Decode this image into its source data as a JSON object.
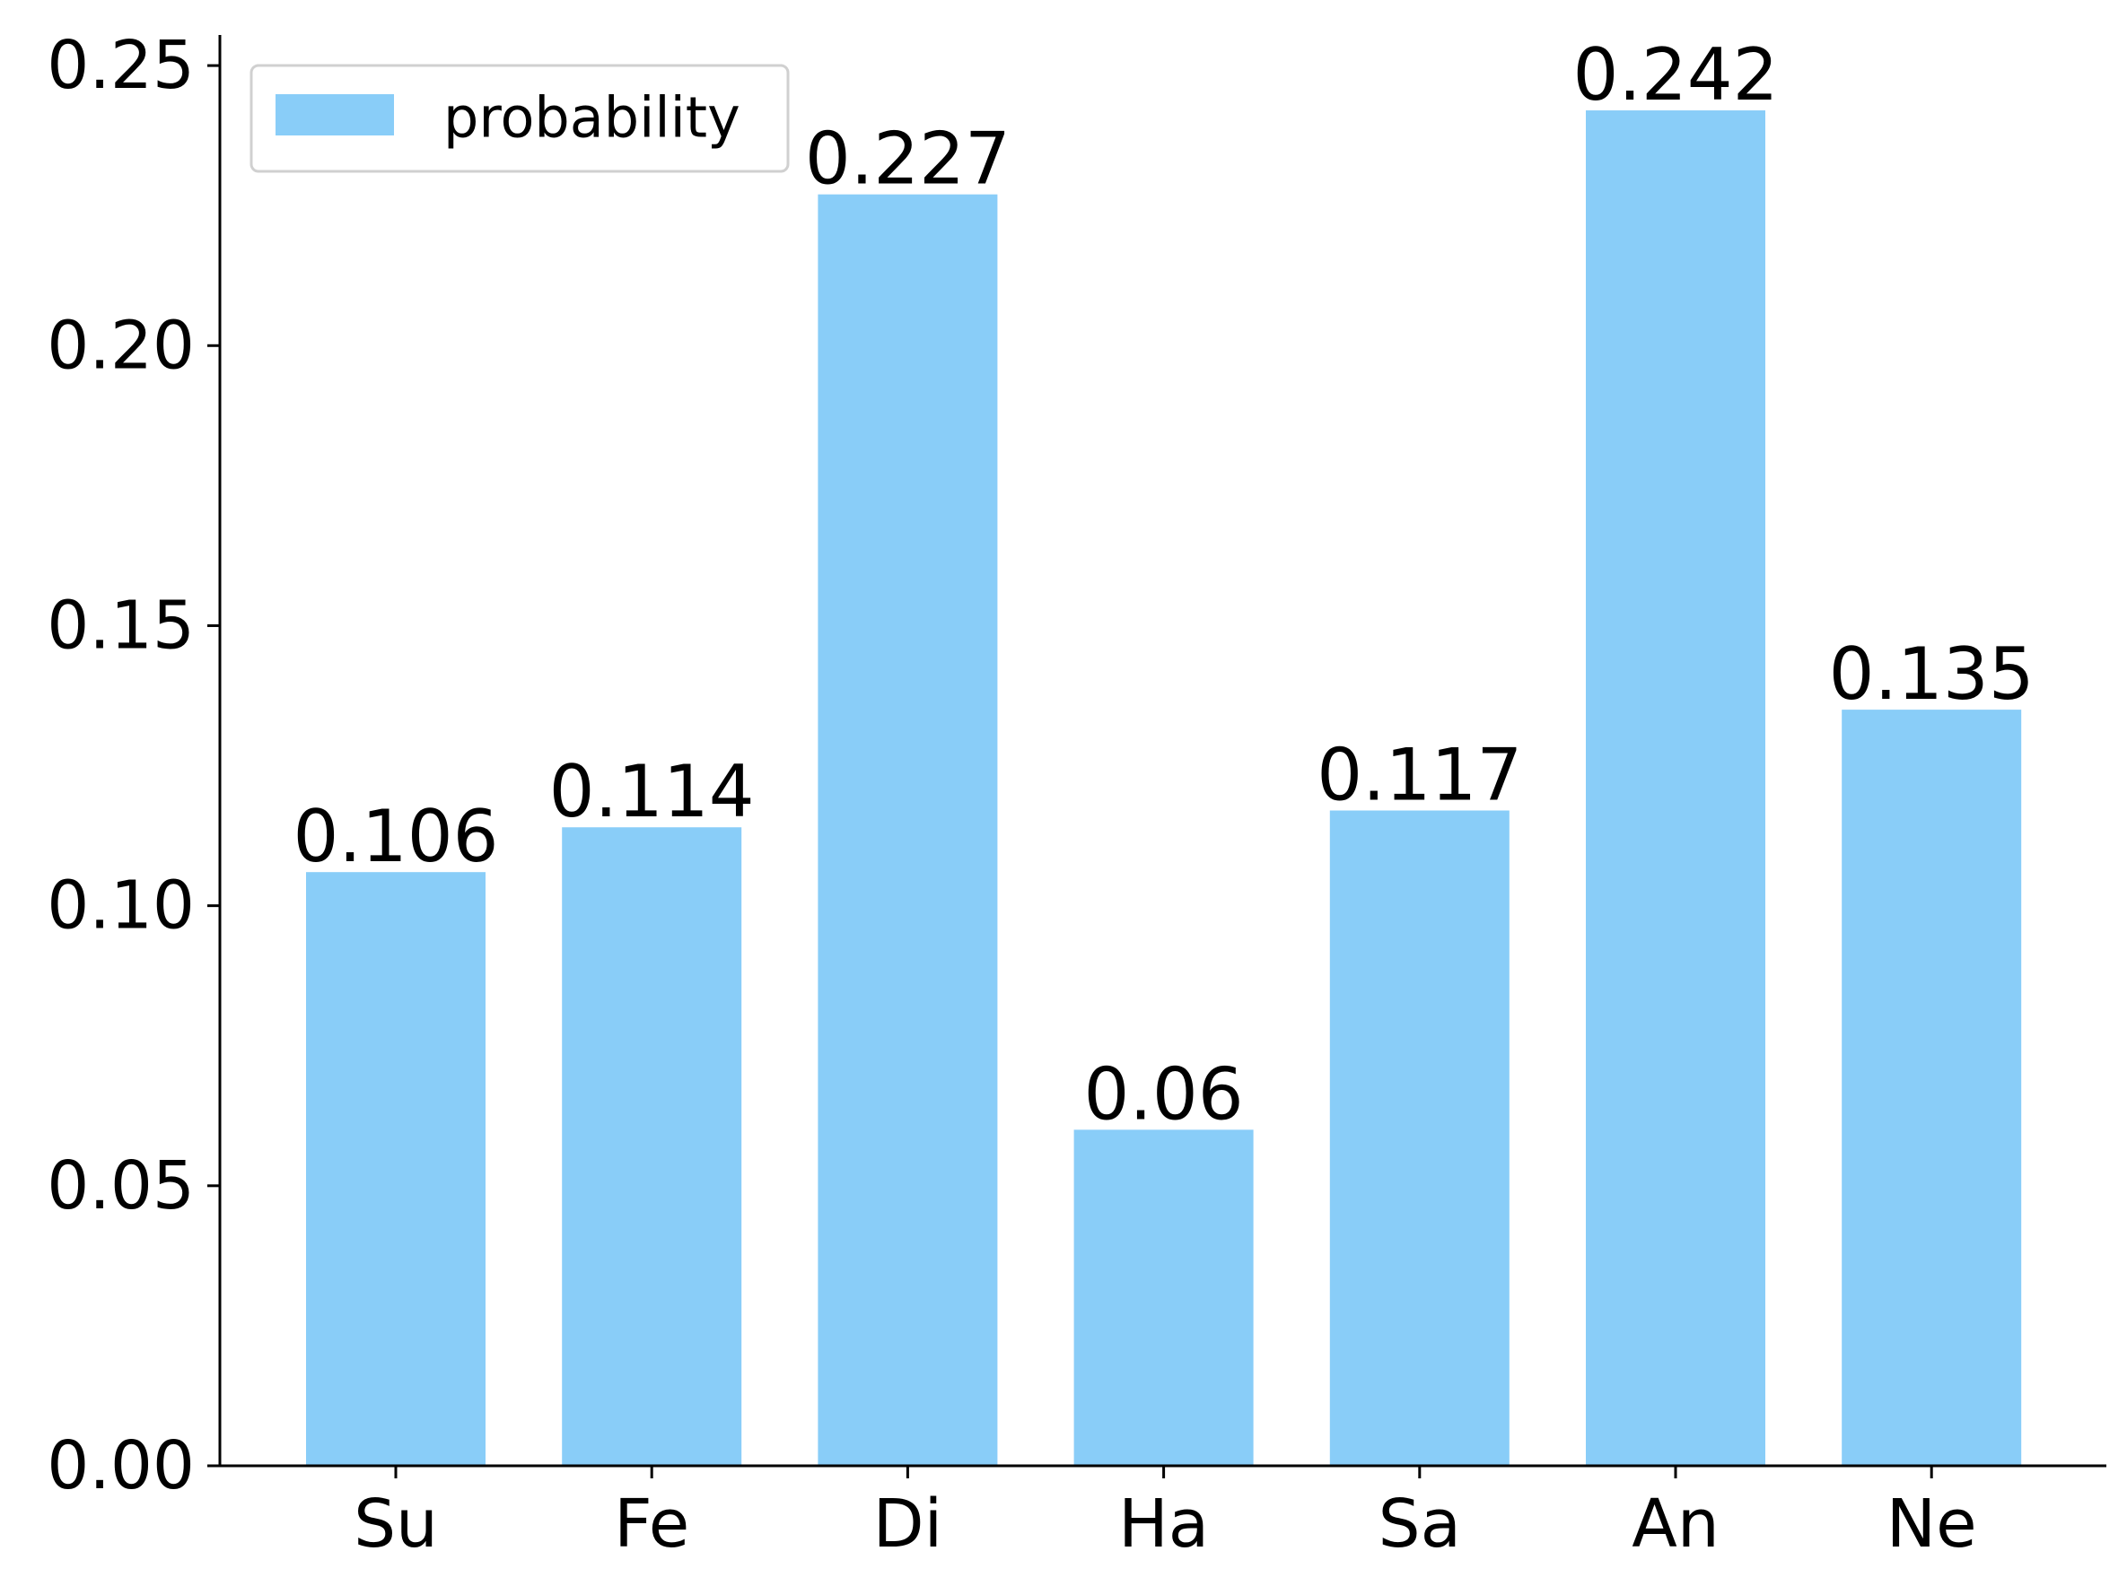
{
  "chart_data": {
    "type": "bar",
    "title": "",
    "xlabel": "",
    "ylabel": "",
    "categories": [
      "Su",
      "Fe",
      "Di",
      "Ha",
      "Sa",
      "An",
      "Ne"
    ],
    "series": [
      {
        "name": "probability",
        "values": [
          0.106,
          0.114,
          0.227,
          0.06,
          0.117,
          0.242,
          0.135
        ],
        "data_labels": [
          "0.106",
          "0.114",
          "0.227",
          "0.06",
          "0.117",
          "0.242",
          "0.135"
        ],
        "color": "#89CDF8"
      }
    ],
    "ylim": [
      0,
      0.2545
    ],
    "yticks": [
      0.0,
      0.05,
      0.1,
      0.15,
      0.2,
      0.25
    ],
    "ytick_labels": [
      "0.00",
      "0.05",
      "0.10",
      "0.15",
      "0.20",
      "0.25"
    ],
    "grid": false,
    "legend": {
      "position": "upper-left"
    }
  }
}
